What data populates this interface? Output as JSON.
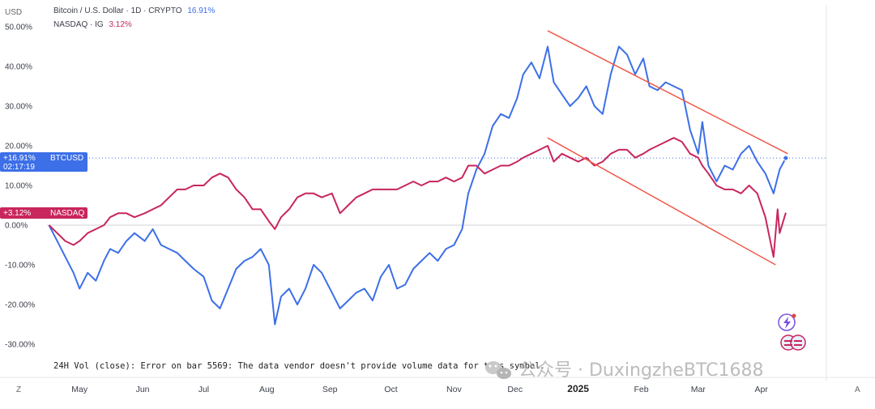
{
  "legend": {
    "btc": {
      "label": "Bitcoin / U.S. Dollar · 1D · CRYPTO",
      "value": "16.91%",
      "color": "#3c6fe8"
    },
    "nasdaq": {
      "label": "NASDAQ · IG",
      "value": "3.12%",
      "color": "#c8265c"
    }
  },
  "currency": "USD",
  "price_tags": {
    "btc": {
      "value": "+16.91%",
      "time": "02:17:19",
      "name": "BTCUSD"
    },
    "nasdaq": {
      "value": "+3.12%",
      "name": "NASDAQ"
    }
  },
  "volume_notice": "24H Vol (close): Error on bar 5569: The data vendor doesn't provide volume data for this symbol.",
  "watermark": "公众号 · DuxingzheBTC1688",
  "corner_left": "Z",
  "corner_right": "A",
  "chart_data": {
    "type": "line",
    "y_unit": "%",
    "ylim": [
      -32,
      52
    ],
    "y_ticks": [
      "50.00%",
      "40.00%",
      "30.00%",
      "20.00%",
      "10.00%",
      "0.00%",
      "-10.00%",
      "-20.00%",
      "-30.00%"
    ],
    "y_tick_values": [
      50,
      40,
      30,
      20,
      10,
      0,
      -10,
      -20,
      -30
    ],
    "x_ticks": [
      "May",
      "Jun",
      "Jul",
      "Aug",
      "Sep",
      "Oct",
      "Nov",
      "Dec",
      "2025",
      "Feb",
      "Mar",
      "Apr"
    ],
    "x_tick_dates": [
      "2024-05-01",
      "2024-06-01",
      "2024-07-01",
      "2024-08-01",
      "2024-09-01",
      "2024-10-01",
      "2024-11-01",
      "2024-12-01",
      "2025-01-01",
      "2025-02-01",
      "2025-03-01",
      "2025-04-01"
    ],
    "xlim": [
      "2024-04-15",
      "2025-04-25"
    ],
    "grid": false,
    "series": [
      {
        "name": "BTCUSD",
        "color": "#3c6fe8",
        "points": [
          [
            "2024-04-16",
            0
          ],
          [
            "2024-04-20",
            -4
          ],
          [
            "2024-04-24",
            -8
          ],
          [
            "2024-04-28",
            -12
          ],
          [
            "2024-05-01",
            -16
          ],
          [
            "2024-05-05",
            -12
          ],
          [
            "2024-05-09",
            -14
          ],
          [
            "2024-05-13",
            -9
          ],
          [
            "2024-05-16",
            -6
          ],
          [
            "2024-05-20",
            -7
          ],
          [
            "2024-05-24",
            -4
          ],
          [
            "2024-05-28",
            -2
          ],
          [
            "2024-06-02",
            -4
          ],
          [
            "2024-06-06",
            -1
          ],
          [
            "2024-06-10",
            -5
          ],
          [
            "2024-06-14",
            -6
          ],
          [
            "2024-06-18",
            -7
          ],
          [
            "2024-06-22",
            -9
          ],
          [
            "2024-06-26",
            -11
          ],
          [
            "2024-07-01",
            -13
          ],
          [
            "2024-07-05",
            -19
          ],
          [
            "2024-07-09",
            -21
          ],
          [
            "2024-07-13",
            -16
          ],
          [
            "2024-07-17",
            -11
          ],
          [
            "2024-07-21",
            -9
          ],
          [
            "2024-07-25",
            -8
          ],
          [
            "2024-07-29",
            -6
          ],
          [
            "2024-08-02",
            -10
          ],
          [
            "2024-08-05",
            -25
          ],
          [
            "2024-08-08",
            -18
          ],
          [
            "2024-08-12",
            -16
          ],
          [
            "2024-08-16",
            -20
          ],
          [
            "2024-08-20",
            -16
          ],
          [
            "2024-08-24",
            -10
          ],
          [
            "2024-08-28",
            -12
          ],
          [
            "2024-09-02",
            -17
          ],
          [
            "2024-09-06",
            -21
          ],
          [
            "2024-09-10",
            -19
          ],
          [
            "2024-09-14",
            -17
          ],
          [
            "2024-09-18",
            -16
          ],
          [
            "2024-09-22",
            -19
          ],
          [
            "2024-09-26",
            -13
          ],
          [
            "2024-09-30",
            -10
          ],
          [
            "2024-10-04",
            -16
          ],
          [
            "2024-10-08",
            -15
          ],
          [
            "2024-10-12",
            -11
          ],
          [
            "2024-10-16",
            -9
          ],
          [
            "2024-10-20",
            -7
          ],
          [
            "2024-10-24",
            -9
          ],
          [
            "2024-10-28",
            -6
          ],
          [
            "2024-11-01",
            -5
          ],
          [
            "2024-11-05",
            -1
          ],
          [
            "2024-11-08",
            8
          ],
          [
            "2024-11-12",
            14
          ],
          [
            "2024-11-16",
            18
          ],
          [
            "2024-11-20",
            25
          ],
          [
            "2024-11-24",
            28
          ],
          [
            "2024-11-28",
            27
          ],
          [
            "2024-12-02",
            32
          ],
          [
            "2024-12-05",
            38
          ],
          [
            "2024-12-09",
            41
          ],
          [
            "2024-12-13",
            37
          ],
          [
            "2024-12-17",
            45
          ],
          [
            "2024-12-20",
            36
          ],
          [
            "2024-12-24",
            33
          ],
          [
            "2024-12-28",
            30
          ],
          [
            "2025-01-01",
            32
          ],
          [
            "2025-01-05",
            35
          ],
          [
            "2025-01-09",
            30
          ],
          [
            "2025-01-13",
            28
          ],
          [
            "2025-01-17",
            38
          ],
          [
            "2025-01-21",
            45
          ],
          [
            "2025-01-25",
            43
          ],
          [
            "2025-01-29",
            38
          ],
          [
            "2025-02-02",
            42
          ],
          [
            "2025-02-05",
            35
          ],
          [
            "2025-02-09",
            34
          ],
          [
            "2025-02-13",
            36
          ],
          [
            "2025-02-17",
            35
          ],
          [
            "2025-02-21",
            34
          ],
          [
            "2025-02-25",
            24
          ],
          [
            "2025-03-01",
            18
          ],
          [
            "2025-03-03",
            26
          ],
          [
            "2025-03-06",
            15
          ],
          [
            "2025-03-10",
            11
          ],
          [
            "2025-03-14",
            15
          ],
          [
            "2025-03-18",
            14
          ],
          [
            "2025-03-22",
            18
          ],
          [
            "2025-03-26",
            20
          ],
          [
            "2025-03-30",
            16
          ],
          [
            "2025-04-03",
            13
          ],
          [
            "2025-04-07",
            8
          ],
          [
            "2025-04-10",
            14
          ],
          [
            "2025-04-13",
            16.91
          ]
        ]
      },
      {
        "name": "NASDAQ",
        "color": "#c8265c",
        "points": [
          [
            "2024-04-16",
            0
          ],
          [
            "2024-04-20",
            -2
          ],
          [
            "2024-04-24",
            -4
          ],
          [
            "2024-04-28",
            -5
          ],
          [
            "2024-05-01",
            -4
          ],
          [
            "2024-05-05",
            -2
          ],
          [
            "2024-05-09",
            -1
          ],
          [
            "2024-05-13",
            0
          ],
          [
            "2024-05-16",
            2
          ],
          [
            "2024-05-20",
            3
          ],
          [
            "2024-05-24",
            3
          ],
          [
            "2024-05-28",
            2
          ],
          [
            "2024-06-02",
            3
          ],
          [
            "2024-06-06",
            4
          ],
          [
            "2024-06-10",
            5
          ],
          [
            "2024-06-14",
            7
          ],
          [
            "2024-06-18",
            9
          ],
          [
            "2024-06-22",
            9
          ],
          [
            "2024-06-26",
            10
          ],
          [
            "2024-07-01",
            10
          ],
          [
            "2024-07-05",
            12
          ],
          [
            "2024-07-09",
            13
          ],
          [
            "2024-07-13",
            12
          ],
          [
            "2024-07-17",
            9
          ],
          [
            "2024-07-21",
            7
          ],
          [
            "2024-07-25",
            4
          ],
          [
            "2024-07-29",
            4
          ],
          [
            "2024-08-02",
            1
          ],
          [
            "2024-08-05",
            -1
          ],
          [
            "2024-08-08",
            2
          ],
          [
            "2024-08-12",
            4
          ],
          [
            "2024-08-16",
            7
          ],
          [
            "2024-08-20",
            8
          ],
          [
            "2024-08-24",
            8
          ],
          [
            "2024-08-28",
            7
          ],
          [
            "2024-09-02",
            8
          ],
          [
            "2024-09-06",
            3
          ],
          [
            "2024-09-10",
            5
          ],
          [
            "2024-09-14",
            7
          ],
          [
            "2024-09-18",
            8
          ],
          [
            "2024-09-22",
            9
          ],
          [
            "2024-09-26",
            9
          ],
          [
            "2024-09-30",
            9
          ],
          [
            "2024-10-04",
            9
          ],
          [
            "2024-10-08",
            10
          ],
          [
            "2024-10-12",
            11
          ],
          [
            "2024-10-16",
            10
          ],
          [
            "2024-10-20",
            11
          ],
          [
            "2024-10-24",
            11
          ],
          [
            "2024-10-28",
            12
          ],
          [
            "2024-11-01",
            11
          ],
          [
            "2024-11-05",
            12
          ],
          [
            "2024-11-08",
            15
          ],
          [
            "2024-11-12",
            15
          ],
          [
            "2024-11-16",
            13
          ],
          [
            "2024-11-20",
            14
          ],
          [
            "2024-11-24",
            15
          ],
          [
            "2024-11-28",
            15
          ],
          [
            "2024-12-02",
            16
          ],
          [
            "2024-12-05",
            17
          ],
          [
            "2024-12-09",
            18
          ],
          [
            "2024-12-13",
            19
          ],
          [
            "2024-12-17",
            20
          ],
          [
            "2024-12-20",
            16
          ],
          [
            "2024-12-24",
            18
          ],
          [
            "2024-12-28",
            17
          ],
          [
            "2025-01-01",
            16
          ],
          [
            "2025-01-05",
            17
          ],
          [
            "2025-01-09",
            15
          ],
          [
            "2025-01-13",
            16
          ],
          [
            "2025-01-17",
            18
          ],
          [
            "2025-01-21",
            19
          ],
          [
            "2025-01-25",
            19
          ],
          [
            "2025-01-29",
            17
          ],
          [
            "2025-02-02",
            18
          ],
          [
            "2025-02-05",
            19
          ],
          [
            "2025-02-09",
            20
          ],
          [
            "2025-02-13",
            21
          ],
          [
            "2025-02-17",
            22
          ],
          [
            "2025-02-21",
            21
          ],
          [
            "2025-02-25",
            18
          ],
          [
            "2025-03-01",
            17
          ],
          [
            "2025-03-03",
            15
          ],
          [
            "2025-03-06",
            13
          ],
          [
            "2025-03-10",
            10
          ],
          [
            "2025-03-14",
            9
          ],
          [
            "2025-03-18",
            9
          ],
          [
            "2025-03-22",
            8
          ],
          [
            "2025-03-26",
            10
          ],
          [
            "2025-03-30",
            8
          ],
          [
            "2025-04-03",
            2
          ],
          [
            "2025-04-07",
            -8
          ],
          [
            "2025-04-09",
            4
          ],
          [
            "2025-04-10",
            -2
          ],
          [
            "2025-04-13",
            3.12
          ]
        ]
      }
    ],
    "annotations": [
      {
        "type": "trendline",
        "color": "#f05a4a",
        "from": [
          "2024-12-17",
          49
        ],
        "to": [
          "2025-04-14",
          18
        ]
      },
      {
        "type": "trendline",
        "color": "#f05a4a",
        "from": [
          "2024-12-17",
          22
        ],
        "to": [
          "2025-04-08",
          -10
        ]
      }
    ]
  }
}
